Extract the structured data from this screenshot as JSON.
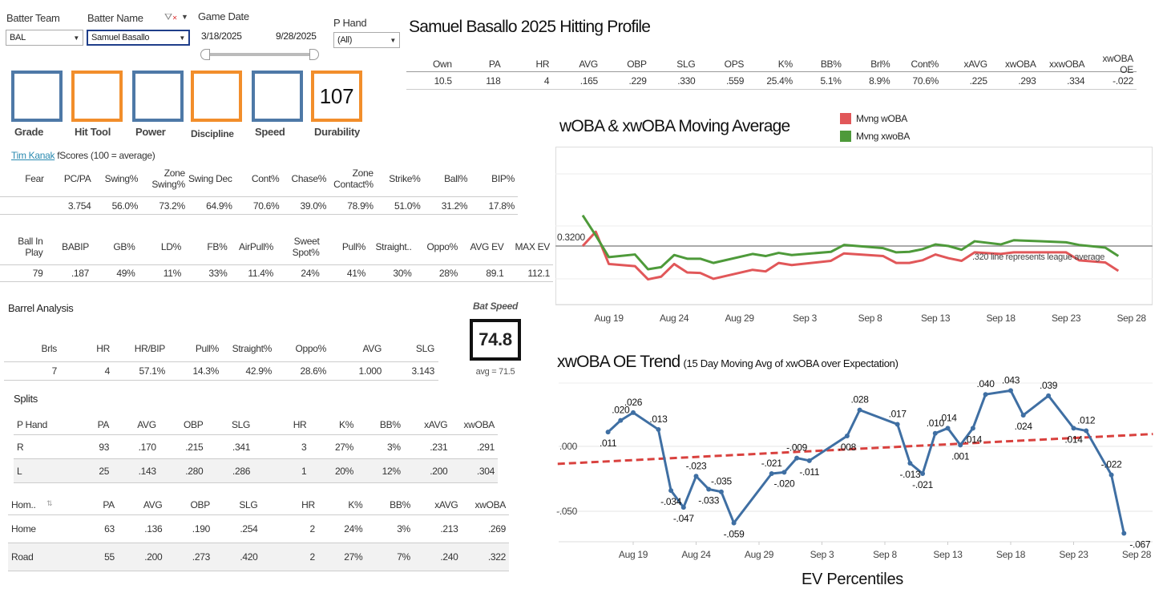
{
  "filters": {
    "batter_team": {
      "label": "Batter Team",
      "value": "BAL"
    },
    "batter_name": {
      "label": "Batter Name",
      "value": "Samuel Basallo"
    },
    "game_date": {
      "label": "Game Date",
      "start": "3/18/2025",
      "end": "9/28/2025"
    },
    "p_hand": {
      "label": "P Hand",
      "value": "(All)"
    }
  },
  "scores": [
    {
      "label": "Grade",
      "value": "",
      "color": "#4e79a7"
    },
    {
      "label": "Hit Tool",
      "value": "",
      "color": "#f28e2b"
    },
    {
      "label": "Power",
      "value": "",
      "color": "#4e79a7"
    },
    {
      "label": "Discipline",
      "value": "",
      "color": "#f28e2b"
    },
    {
      "label": "Speed",
      "value": "",
      "color": "#4e79a7"
    },
    {
      "label": "Durability",
      "value": "107",
      "color": "#f28e2b"
    }
  ],
  "credit": {
    "link": "Tim Kanak",
    "text": "fScores (100 = average)"
  },
  "profile": {
    "title": "Samuel Basallo 2025 Hitting Profile",
    "headers": [
      "Own",
      "PA",
      "HR",
      "AVG",
      "OBP",
      "SLG",
      "OPS",
      "K%",
      "BB%",
      "Brl%",
      "Cont%",
      "xAVG",
      "xwOBA",
      "xxwOBA",
      "xwOBA OE"
    ],
    "rows": [
      [
        "10.5",
        "118",
        "4",
        ".165",
        ".229",
        ".330",
        ".559",
        "25.4%",
        "5.1%",
        "8.9%",
        "70.6%",
        ".225",
        ".293",
        ".334",
        "-.022"
      ]
    ]
  },
  "plate_discipline": {
    "headers": [
      "Fear",
      "PC/PA",
      "Swing%",
      "Zone Swing%",
      "Swing Dec",
      "Cont%",
      "Chase%",
      "Zone Contact%",
      "Strike%",
      "Ball%",
      "BIP%"
    ],
    "rows": [
      [
        "",
        "3.754",
        "56.0%",
        "73.2%",
        "64.9%",
        "70.6%",
        "39.0%",
        "78.9%",
        "51.0%",
        "31.2%",
        "17.8%"
      ]
    ]
  },
  "batted_ball": {
    "headers": [
      "Ball In Play",
      "BABIP",
      "GB%",
      "LD%",
      "FB%",
      "AirPull%",
      "Sweet Spot%",
      "Pull%",
      "Straight..",
      "Oppo%",
      "AVG EV",
      "MAX EV"
    ],
    "rows": [
      [
        "79",
        ".187",
        "49%",
        "11%",
        "33%",
        "11.4%",
        "24%",
        "41%",
        "30%",
        "28%",
        "89.1",
        "112.1"
      ]
    ]
  },
  "barrel": {
    "title": "Barrel Analysis",
    "headers": [
      "Brls",
      "HR",
      "HR/BIP",
      "Pull%",
      "Straight%",
      "Oppo%",
      "AVG",
      "SLG"
    ],
    "rows": [
      [
        "7",
        "4",
        "57.1%",
        "14.3%",
        "42.9%",
        "28.6%",
        "1.000",
        "3.143"
      ]
    ]
  },
  "bat_speed": {
    "label": "Bat Speed",
    "value": "74.8",
    "avg": "avg = 71.5"
  },
  "splits": {
    "title": "Splits",
    "hand": {
      "headers": [
        "P Hand",
        "PA",
        "AVG",
        "OBP",
        "SLG",
        "HR",
        "K%",
        "BB%",
        "xAVG",
        "xwOBA"
      ],
      "rows": [
        [
          "R",
          "93",
          ".170",
          ".215",
          ".341",
          "3",
          "27%",
          "3%",
          ".231",
          ".291"
        ],
        [
          "L",
          "25",
          ".143",
          ".280",
          ".286",
          "1",
          "20%",
          "12%",
          ".200",
          ".304"
        ]
      ]
    },
    "home": {
      "headers": [
        "Hom..",
        "PA",
        "AVG",
        "OBP",
        "SLG",
        "HR",
        "K%",
        "BB%",
        "xAVG",
        "xwOBA"
      ],
      "rows": [
        [
          "Home",
          "63",
          ".136",
          ".190",
          ".254",
          "2",
          "24%",
          "3%",
          ".213",
          ".269"
        ],
        [
          "Road",
          "55",
          ".200",
          ".273",
          ".420",
          "2",
          "27%",
          "7%",
          ".240",
          ".322"
        ]
      ]
    }
  },
  "chart_data": [
    {
      "type": "line",
      "title": "wOBA & xwOBA Moving Average",
      "legend_position": "top",
      "x": [
        "Aug 17",
        "Aug 18",
        "Aug 19",
        "Aug 21",
        "Aug 22",
        "Aug 23",
        "Aug 24",
        "Aug 25",
        "Aug 26",
        "Aug 27",
        "Aug 30",
        "Aug 31",
        "Sep 1",
        "Sep 2",
        "Sep 5",
        "Sep 6",
        "Sep 9",
        "Sep 10",
        "Sep 11",
        "Sep 12",
        "Sep 13",
        "Sep 14",
        "Sep 15",
        "Sep 16",
        "Sep 18",
        "Sep 19",
        "Sep 21",
        "Sep 23",
        "Sep 24",
        "Sep 26",
        "Sep 27"
      ],
      "x_day_index": [
        0,
        1,
        2,
        4,
        5,
        6,
        7,
        8,
        9,
        10,
        13,
        14,
        15,
        16,
        19,
        20,
        23,
        24,
        25,
        26,
        27,
        28,
        29,
        30,
        32,
        33,
        35,
        37,
        38,
        40,
        41
      ],
      "series": [
        {
          "name": "Mvng wOBA",
          "color": "#e15759",
          "values": [
            0.32,
            0.347,
            0.286,
            0.282,
            0.257,
            0.262,
            0.286,
            0.27,
            0.269,
            0.258,
            0.275,
            0.272,
            0.288,
            0.284,
            0.292,
            0.306,
            0.301,
            0.288,
            0.288,
            0.293,
            0.304,
            0.297,
            0.292,
            0.308,
            0.305,
            0.308,
            0.308,
            0.308,
            0.293,
            0.289,
            0.273
          ]
        },
        {
          "name": "Mvng xwoBA",
          "color": "#4e9a3a",
          "values": [
            0.378,
            0.34,
            0.299,
            0.304,
            0.276,
            0.28,
            0.303,
            0.296,
            0.296,
            0.288,
            0.305,
            0.301,
            0.307,
            0.303,
            0.309,
            0.322,
            0.316,
            0.308,
            0.309,
            0.314,
            0.323,
            0.32,
            0.313,
            0.329,
            0.323,
            0.331,
            0.329,
            0.327,
            0.322,
            0.317,
            0.301
          ]
        }
      ],
      "reference_line": {
        "value": 0.32,
        "label": "0.3200",
        "annotation": ".320 line represents league average"
      },
      "x_ticks": [
        "Aug 19",
        "Aug 24",
        "Aug 29",
        "Sep 3",
        "Sep 8",
        "Sep 13",
        "Sep 18",
        "Sep 23",
        "Sep 28"
      ],
      "x_tick_day_index": [
        2,
        7,
        12,
        17,
        22,
        27,
        32,
        37,
        42
      ],
      "grid": true
    },
    {
      "type": "line",
      "title": "xwOBA OE Trend",
      "subtitle": "(15 Day Moving Avg of xwOBA over Expectation)",
      "x": [
        "Aug 17",
        "Aug 18",
        "Aug 19",
        "Aug 21",
        "Aug 22",
        "Aug 23",
        "Aug 24",
        "Aug 25",
        "Aug 26",
        "Aug 27",
        "Aug 30",
        "Aug 31",
        "Sep 1",
        "Sep 2",
        "Sep 5",
        "Sep 6",
        "Sep 9",
        "Sep 10",
        "Sep 11",
        "Sep 12",
        "Sep 13",
        "Sep 14",
        "Sep 15",
        "Sep 16",
        "Sep 18",
        "Sep 19",
        "Sep 21",
        "Sep 23",
        "Sep 24",
        "Sep 26",
        "Sep 27"
      ],
      "x_day_index": [
        0,
        1,
        2,
        4,
        5,
        6,
        7,
        8,
        9,
        10,
        13,
        14,
        15,
        16,
        19,
        20,
        23,
        24,
        25,
        26,
        27,
        28,
        29,
        30,
        32,
        33,
        35,
        37,
        38,
        40,
        41
      ],
      "series": [
        {
          "name": "xwOBA OE",
          "color": "#3f6fa3",
          "values": [
            0.011,
            0.02,
            0.026,
            0.013,
            -0.034,
            -0.047,
            -0.023,
            -0.033,
            -0.035,
            -0.059,
            -0.021,
            -0.02,
            -0.009,
            -0.011,
            0.008,
            0.028,
            0.017,
            -0.013,
            -0.021,
            0.01,
            0.014,
            0.001,
            0.014,
            0.04,
            0.043,
            0.024,
            0.039,
            0.014,
            0.012,
            -0.022,
            -0.067
          ],
          "labels": [
            ".011",
            ".020",
            ".026",
            ".013",
            "-.034",
            "-.047",
            "-.023",
            "-.033",
            "-.035",
            "-.059",
            "-.021",
            "-.020",
            "-.009",
            "-.011",
            ".008",
            ".028",
            ".017",
            "-.013",
            "-.021",
            ".010",
            ".014",
            ".001",
            ".014",
            ".040",
            ".043",
            ".024",
            ".039",
            ".014",
            ".012",
            "-.022",
            "-.067"
          ]
        }
      ],
      "trend_line": {
        "color": "#d9413e",
        "start_day": -4,
        "start_value": -0.0135,
        "end_day": 43.3,
        "end_value": 0.0095
      },
      "y_ticks": [
        0,
        -0.05
      ],
      "y_tick_labels": [
        ".000",
        "-.050"
      ],
      "ylim": [
        -0.072,
        0.049
      ],
      "x_ticks": [
        "Aug 19",
        "Aug 24",
        "Aug 29",
        "Sep 3",
        "Sep 8",
        "Sep 13",
        "Sep 18",
        "Sep 23",
        "Sep 28"
      ],
      "x_tick_day_index": [
        2,
        7,
        12,
        17,
        22,
        27,
        32,
        37,
        42
      ],
      "grid": true
    }
  ],
  "next_section": {
    "title": "EV Percentiles"
  }
}
